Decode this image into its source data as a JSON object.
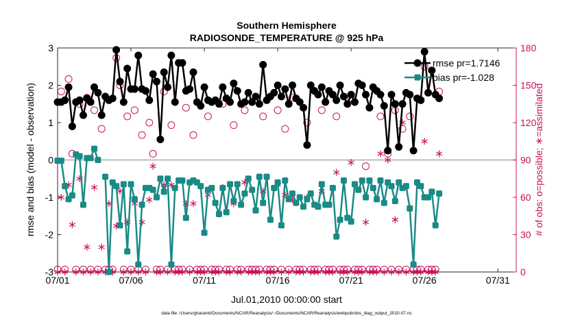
{
  "chart_data": {
    "type": "line",
    "title": [
      "Southern Hemisphere",
      "RADIOSONDE_TEMPERATURE @ 925 hPa"
    ],
    "xlabel": "Jul.01,2010 00:00:00 start",
    "ylabel_left": "rmse and bias (model - observation)",
    "ylabel_right": "# of obs: o=possible; ∗=assimilated",
    "footnote": "data file: /Users/gharamti/Documents/NCAR/Reanalysis/~/Documents/NCAR/Reanalysis/webpub/obs_diag_output_2010-07.nc",
    "xlim": [
      1,
      32.25
    ],
    "ylim_left": [
      -3,
      3
    ],
    "ylim_right": [
      0,
      180
    ],
    "x_ticks": [
      1,
      6,
      11,
      16,
      21,
      26,
      31
    ],
    "x_tick_labels": [
      "07/01",
      "07/06",
      "07/11",
      "07/16",
      "07/21",
      "07/26",
      "07/31"
    ],
    "y_ticks_left": [
      -3,
      -2,
      -1,
      0,
      1,
      2,
      3
    ],
    "y_tick_labels_left": [
      "-3",
      "-2",
      "-1",
      "0",
      "1",
      "2",
      "3"
    ],
    "y_ticks_right": [
      0,
      30,
      60,
      90,
      120,
      150,
      180
    ],
    "y_tick_labels_right": [
      "0",
      "30",
      "60",
      "90",
      "120",
      "150",
      "180"
    ],
    "x_step_days": 0.25,
    "colors": {
      "rmse": "#000000",
      "bias": "#1a8a86",
      "obs": "#c8105a",
      "zero_line": "#aaaaaa"
    },
    "series": [
      {
        "name": "rmse",
        "legend": "rmse pr=1.7146",
        "values": [
          1.55,
          1.55,
          1.6,
          1.95,
          0.9,
          1.55,
          1.6,
          1.2,
          1.65,
          1.55,
          1.95,
          1.8,
          1.2,
          1.7,
          1.6,
          1.65,
          2.95,
          2.1,
          1.55,
          2.45,
          1.9,
          1.9,
          2.8,
          1.9,
          1.85,
          1.6,
          2.3,
          2.1,
          0.55,
          2.35,
          1.95,
          2.8,
          1.55,
          2.6,
          2.6,
          1.85,
          1.9,
          2.35,
          1.55,
          1.45,
          1.95,
          1.6,
          1.55,
          1.6,
          1.5,
          1.95,
          1.65,
          1.55,
          2.05,
          1.85,
          1.5,
          1.55,
          1.8,
          1.55,
          1.7,
          1.5,
          2.55,
          1.6,
          1.7,
          1.8,
          2.0,
          1.7,
          1.9,
          1.5,
          2.0,
          1.65,
          1.55,
          1.4,
          0.4,
          2.0,
          1.85,
          1.75,
          1.95,
          1.55,
          1.85,
          1.75,
          1.6,
          2.0,
          1.7,
          1.5,
          1.75,
          1.55,
          2.05,
          2.0,
          1.75,
          1.4,
          1.95,
          1.85,
          1.75,
          1.45,
          0.25,
          1.75,
          1.5,
          0.35,
          1.5,
          1.8,
          1.75,
          0.25,
          1.65,
          1.6,
          2.9,
          1.8,
          2.4,
          1.75,
          1.65
        ]
      },
      {
        "name": "bias",
        "legend": "bias pr=-1.028",
        "values": [
          -0.02,
          -0.02,
          -0.7,
          -1.05,
          -0.95,
          0.15,
          0.1,
          -1.2,
          0.05,
          0.05,
          0.3,
          0.0,
          null,
          -0.45,
          -3.0,
          -0.6,
          -0.7,
          -1.75,
          -0.65,
          -2.45,
          -0.65,
          -1.05,
          -2.8,
          -1.2,
          -0.75,
          -0.75,
          -0.8,
          -1.0,
          -0.5,
          -0.85,
          -0.5,
          -2.8,
          -0.75,
          -0.55,
          -0.55,
          -1.55,
          -0.6,
          -0.55,
          -0.6,
          -0.7,
          -1.95,
          -0.8,
          -0.75,
          -1.15,
          -1.45,
          -0.75,
          -1.4,
          -0.65,
          -1.1,
          -0.65,
          -1.2,
          -0.9,
          -0.5,
          -0.8,
          -1.35,
          -0.45,
          -1.15,
          -0.45,
          -1.6,
          -0.75,
          -0.6,
          -1.75,
          -0.55,
          -1.05,
          -0.9,
          -1.15,
          -1.0,
          -1.25,
          -1.05,
          -0.9,
          -1.2,
          -1.25,
          -0.65,
          -1.2,
          -1.2,
          -0.75,
          -2.05,
          -1.6,
          -0.55,
          -1.55,
          -1.65,
          -0.65,
          -0.8,
          -0.55,
          -1.0,
          -0.55,
          -0.75,
          -1.05,
          -0.55,
          -1.15,
          -0.6,
          -0.7,
          -1.1,
          -0.6,
          -0.75,
          -0.7,
          -1.3,
          -2.8,
          -0.6,
          -0.7,
          -1.0,
          -1.0,
          -0.85,
          -1.75,
          -0.9
        ]
      }
    ],
    "obs_possible": [
      2,
      145,
      2,
      155,
      95,
      2,
      135,
      2,
      140,
      2,
      130,
      2,
      115,
      2,
      2,
      2,
      172,
      150,
      2,
      125,
      2,
      130,
      2,
      110,
      2,
      120,
      95,
      2,
      2,
      145,
      2,
      118,
      2,
      2,
      2,
      132,
      2,
      110,
      2,
      2,
      2,
      125,
      2,
      2,
      2,
      135,
      2,
      2,
      118,
      2,
      2,
      130,
      2,
      2,
      2,
      2,
      125,
      2,
      2,
      2,
      130,
      2,
      115,
      2,
      140,
      2,
      2,
      2,
      120,
      2,
      2,
      2,
      130,
      2,
      2,
      2,
      125,
      2,
      2,
      2,
      140,
      2,
      2,
      2,
      85,
      2,
      2,
      2,
      125,
      2,
      95,
      2,
      130,
      2,
      115,
      2,
      125,
      2,
      2,
      2,
      165,
      2,
      2,
      2,
      145
    ],
    "obs_assimilated": [
      0,
      60,
      0,
      70,
      38,
      0,
      75,
      0,
      20,
      0,
      68,
      0,
      20,
      0,
      55,
      0,
      37,
      65,
      0,
      40,
      0,
      55,
      0,
      40,
      0,
      58,
      85,
      0,
      0,
      70,
      0,
      70,
      0,
      0,
      0,
      55,
      0,
      55,
      0,
      0,
      0,
      62,
      0,
      0,
      0,
      68,
      0,
      0,
      55,
      0,
      0,
      72,
      0,
      0,
      0,
      0,
      65,
      0,
      0,
      0,
      70,
      0,
      62,
      0,
      58,
      0,
      0,
      0,
      60,
      0,
      0,
      0,
      65,
      0,
      0,
      0,
      80,
      0,
      0,
      0,
      88,
      0,
      0,
      0,
      40,
      0,
      0,
      0,
      95,
      0,
      90,
      0,
      42,
      0,
      120,
      0,
      52,
      0,
      0,
      0,
      105,
      0,
      0,
      0,
      95
    ]
  }
}
